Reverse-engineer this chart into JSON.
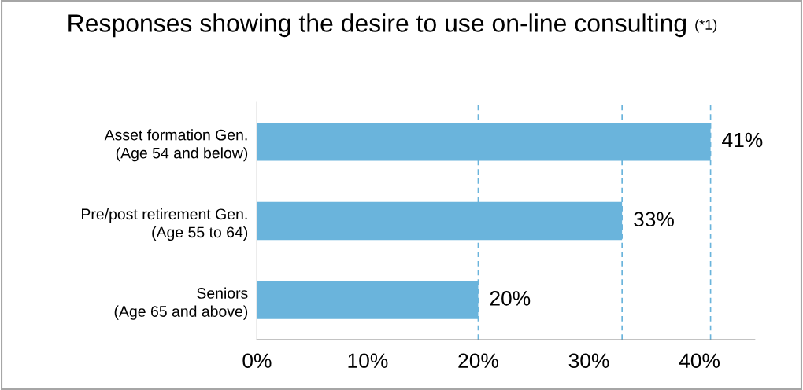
{
  "chart_data": {
    "type": "bar",
    "orientation": "horizontal",
    "title": "Responses showing the desire to use on-line consulting",
    "annotations": [
      "(*1)"
    ],
    "categories": [
      "Asset formation Gen.\n(Age 54 and below)",
      "Pre/post retirement Gen.\n(Age 55 to 64)",
      "Seniors\n(Age 65 and above)"
    ],
    "values": [
      41,
      33,
      20
    ],
    "value_labels": [
      "41%",
      "33%",
      "20%"
    ],
    "color": "#6ab4dc",
    "xlim": [
      0,
      45
    ],
    "xticks": [
      {
        "value": 0,
        "label": "0%"
      },
      {
        "value": 10,
        "label": "10%"
      },
      {
        "value": 20,
        "label": "20%"
      },
      {
        "value": 30,
        "label": "30%"
      },
      {
        "value": 40,
        "label": "40%"
      }
    ],
    "ref_lines": [
      {
        "axis": "x",
        "value": 41,
        "color": "#6ab4dc",
        "line_style": "dashed"
      },
      {
        "axis": "x",
        "value": 33,
        "color": "#6ab4dc",
        "line_style": "dashed"
      },
      {
        "axis": "x",
        "value": 20,
        "color": "#6ab4dc",
        "line_style": "dashed"
      }
    ],
    "grid": false,
    "legend": false
  }
}
